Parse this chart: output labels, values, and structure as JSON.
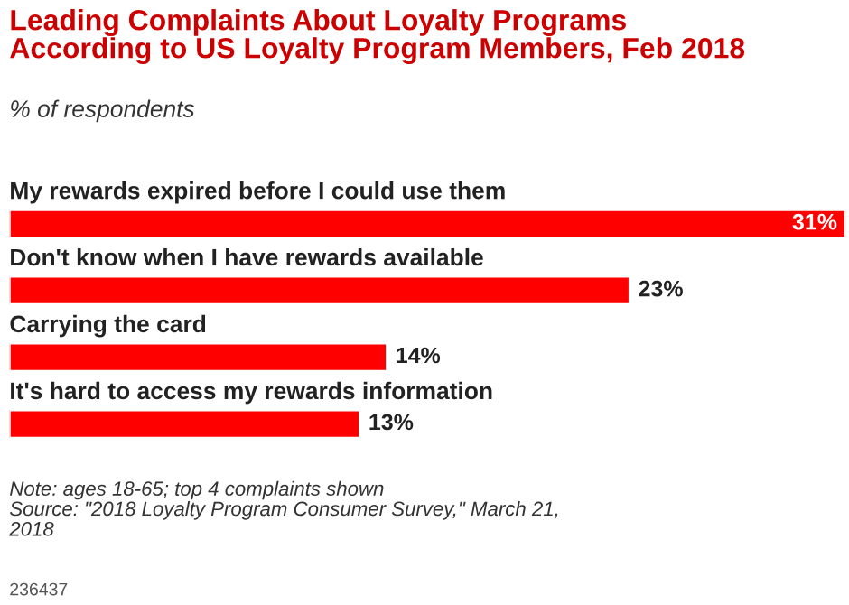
{
  "chart_data": {
    "type": "bar",
    "orientation": "horizontal",
    "title": "Leading Complaints About Loyalty Programs\nAccording to US Loyalty Program Members, Feb 2018",
    "subtitle": "% of respondents",
    "categories": [
      "My rewards expired before I could use them",
      "Don't know when I have rewards available",
      "Carrying the card",
      "It's hard to access my rewards information"
    ],
    "values": [
      31,
      23,
      14,
      13
    ],
    "value_labels": [
      "31%",
      "23%",
      "14%",
      "13%"
    ],
    "color": "#ff0000",
    "annotations": [
      "Note: ages 18-65; top 4 complaints shown\nSource: \"2018 Loyalty Program Consumer Survey,\" March 21,\n2018",
      "236437"
    ]
  }
}
